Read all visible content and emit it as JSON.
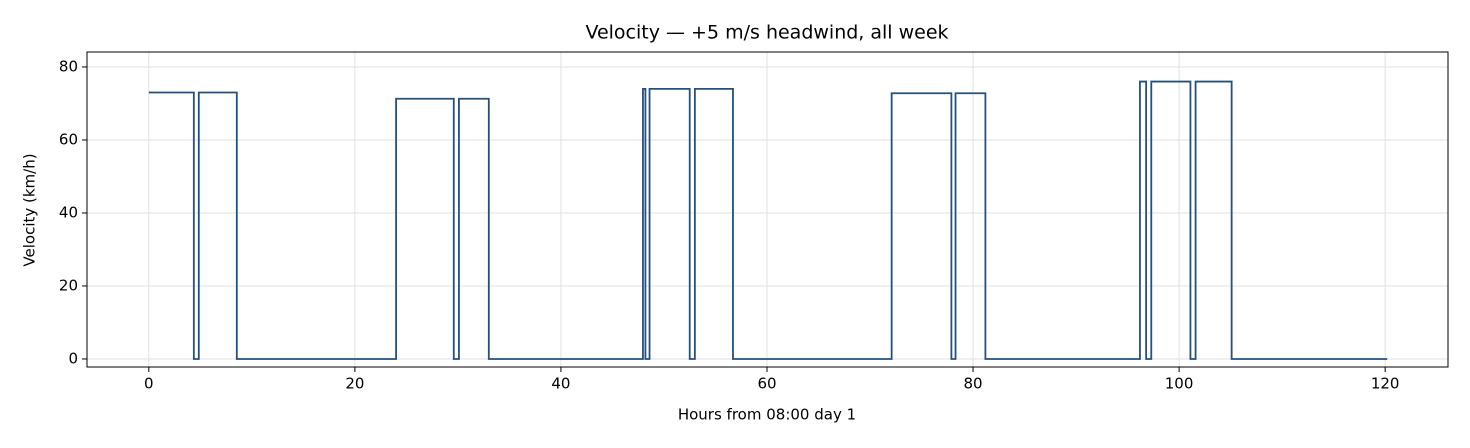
{
  "chart_data": {
    "type": "line",
    "title": "Velocity — +5 m/s headwind, all week",
    "x_label": "Hours from 08:00 day 1",
    "y_label": "Velocity (km/h)",
    "xlim": [
      -6.0,
      126.1
    ],
    "ylim": [
      -2.2,
      84.1
    ],
    "xticks": [
      0,
      20,
      40,
      60,
      80,
      100,
      120
    ],
    "yticks": [
      0,
      20,
      40,
      60,
      80
    ],
    "grid": true,
    "series": [
      {
        "color": "#24507a",
        "x": [
          0,
          4.37,
          4.37,
          4.85,
          4.85,
          8.54,
          8.54,
          24.0,
          24.0,
          29.6,
          29.6,
          30.1,
          30.1,
          33.0,
          33.0,
          47.96,
          47.96,
          48.2,
          48.2,
          48.6,
          48.6,
          52.5,
          52.5,
          53.0,
          53.0,
          56.7,
          56.7,
          72.1,
          72.1,
          77.9,
          77.9,
          78.3,
          78.3,
          81.2,
          81.2,
          96.2,
          96.2,
          96.8,
          96.8,
          97.3,
          97.3,
          101.1,
          101.1,
          101.6,
          101.6,
          105.1,
          105.1,
          120.2
        ],
        "values": [
          73,
          73,
          0,
          0,
          73,
          73,
          0,
          0,
          71.3,
          71.3,
          0,
          0,
          71.3,
          71.3,
          0,
          0,
          74,
          74,
          0,
          0,
          74,
          74,
          0,
          0,
          74,
          74,
          0,
          0,
          72.8,
          72.8,
          0,
          0,
          72.8,
          72.8,
          0,
          0,
          76,
          76,
          0,
          0,
          76,
          76,
          0,
          0,
          76,
          76,
          0,
          0
        ]
      }
    ]
  }
}
